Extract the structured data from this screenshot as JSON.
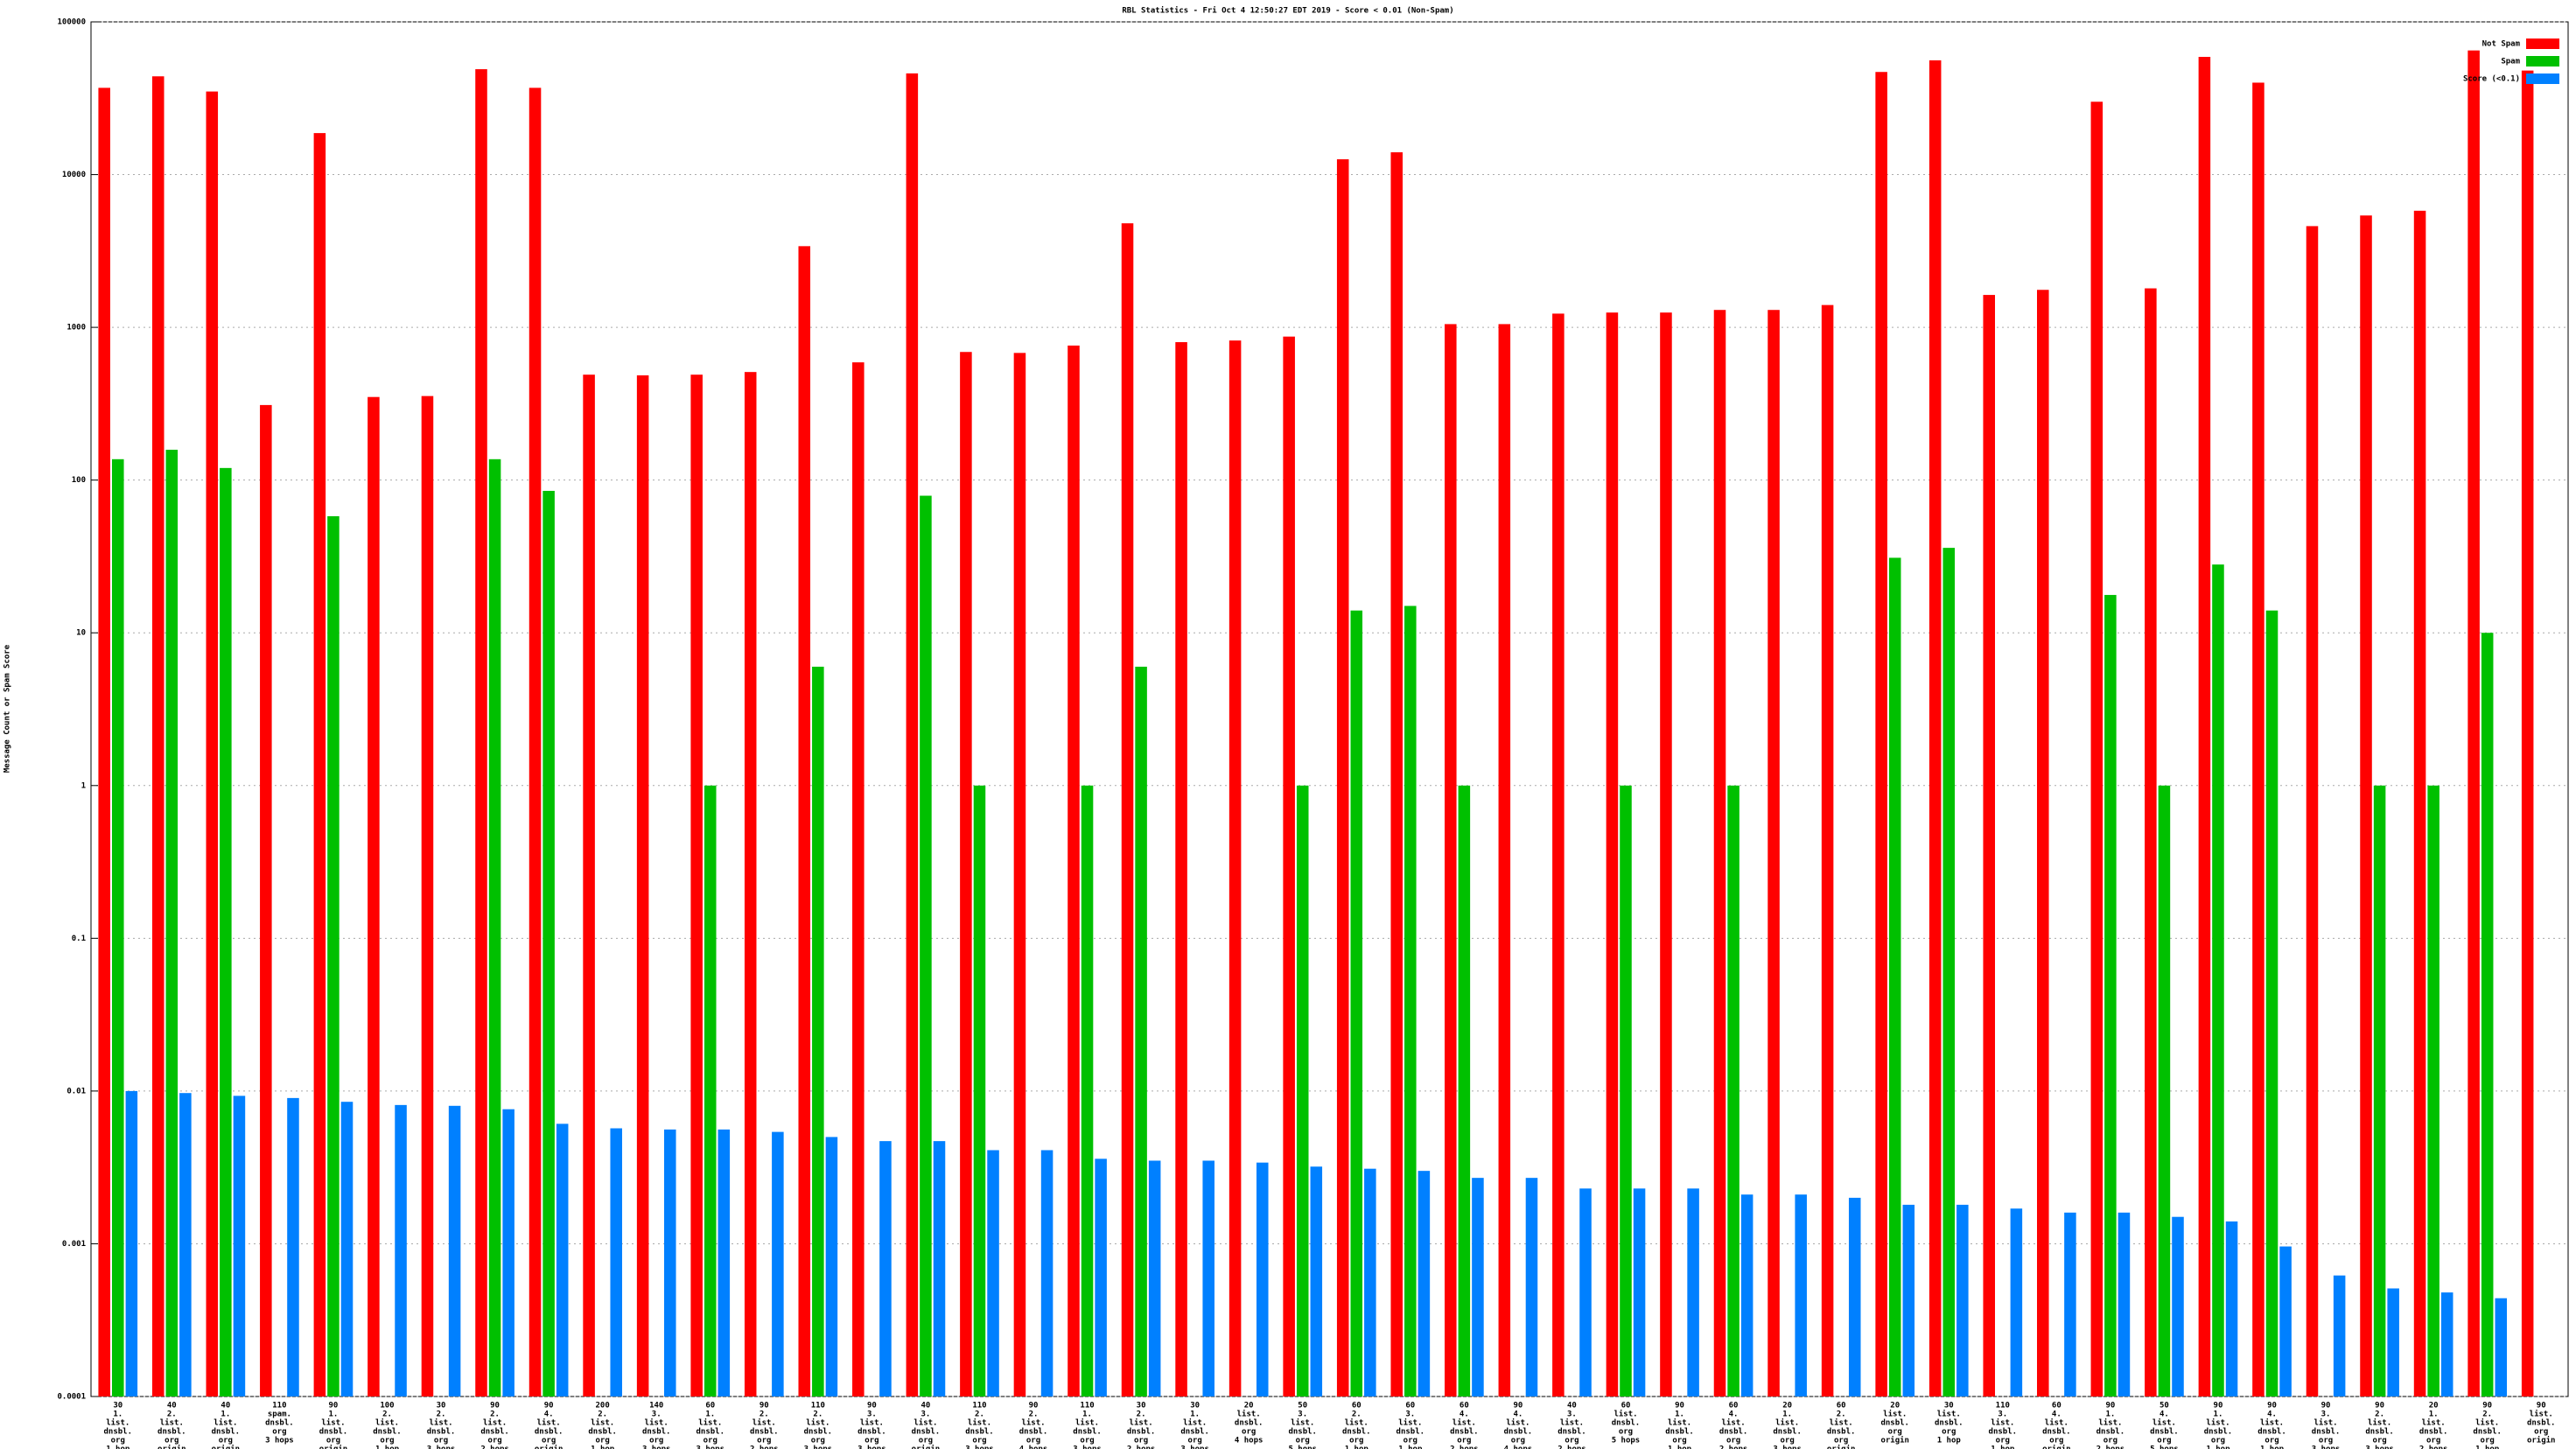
{
  "chart_data": {
    "type": "bar",
    "log_scale": true,
    "grid": true,
    "legend": "upper right",
    "title": "RBL Statistics - Fri Oct  4 12:50:27 EDT 2019 - Score < 0.01 (Non-Spam)",
    "ylabel": "Message Count or Spam Score",
    "ylim": [
      0.0001,
      100000
    ],
    "yticks": [
      0.0001,
      0.001,
      0.01,
      0.1,
      1,
      10,
      100,
      1000,
      10000,
      100000
    ],
    "categories": [
      [
        "30",
        "1.",
        "list.",
        "dnsbl.",
        "org",
        "1 hop"
      ],
      [
        "40",
        "2.",
        "list.",
        "dnsbl.",
        "org",
        "origin"
      ],
      [
        "40",
        "1.",
        "list.",
        "dnsbl.",
        "org",
        "origin"
      ],
      [
        "110",
        "spam.",
        "dnsbl.",
        "org",
        "3 hops"
      ],
      [
        "90",
        "1.",
        "list.",
        "dnsbl.",
        "org",
        "origin"
      ],
      [
        "100",
        "2.",
        "list.",
        "dnsbl.",
        "org",
        "1 hop"
      ],
      [
        "30",
        "2.",
        "list.",
        "dnsbl.",
        "org",
        "3 hops"
      ],
      [
        "90",
        "2.",
        "list.",
        "dnsbl.",
        "org",
        "2 hops"
      ],
      [
        "90",
        "4.",
        "list.",
        "dnsbl.",
        "org",
        "origin"
      ],
      [
        "200",
        "2.",
        "list.",
        "dnsbl.",
        "org",
        "1 hop"
      ],
      [
        "140",
        "3.",
        "list.",
        "dnsbl.",
        "org",
        "3 hops"
      ],
      [
        "60",
        "1.",
        "list.",
        "dnsbl.",
        "org",
        "3 hops"
      ],
      [
        "90",
        "2.",
        "list.",
        "dnsbl.",
        "org",
        "2 hops"
      ],
      [
        "110",
        "2.",
        "list.",
        "dnsbl.",
        "org",
        "3 hops"
      ],
      [
        "90",
        "3.",
        "list.",
        "dnsbl.",
        "org",
        "3 hops"
      ],
      [
        "40",
        "3.",
        "list.",
        "dnsbl.",
        "org",
        "origin"
      ],
      [
        "110",
        "2.",
        "list.",
        "dnsbl.",
        "org",
        "3 hops"
      ],
      [
        "90",
        "2.",
        "list.",
        "dnsbl.",
        "org",
        "4 hops"
      ],
      [
        "110",
        "1.",
        "list.",
        "dnsbl.",
        "org",
        "3 hops"
      ],
      [
        "30",
        "2.",
        "list.",
        "dnsbl.",
        "org",
        "2 hops"
      ],
      [
        "30",
        "1.",
        "list.",
        "dnsbl.",
        "org",
        "3 hops"
      ],
      [
        "20",
        "list.",
        "dnsbl.",
        "org",
        "4 hops"
      ],
      [
        "50",
        "3.",
        "list.",
        "dnsbl.",
        "org",
        "5 hops"
      ],
      [
        "60",
        "2.",
        "list.",
        "dnsbl.",
        "org",
        "1 hop"
      ],
      [
        "60",
        "3.",
        "list.",
        "dnsbl.",
        "org",
        "1 hop"
      ],
      [
        "60",
        "4.",
        "list.",
        "dnsbl.",
        "org",
        "2 hops"
      ],
      [
        "90",
        "4.",
        "list.",
        "dnsbl.",
        "org",
        "4 hops"
      ],
      [
        "40",
        "3.",
        "list.",
        "dnsbl.",
        "org",
        "2 hops"
      ],
      [
        "60",
        "list.",
        "dnsbl.",
        "org",
        "5 hops"
      ],
      [
        "90",
        "1.",
        "list.",
        "dnsbl.",
        "org",
        "1 hop"
      ],
      [
        "60",
        "4.",
        "list.",
        "dnsbl.",
        "org",
        "2 hops"
      ],
      [
        "20",
        "1.",
        "list.",
        "dnsbl.",
        "org",
        "3 hops"
      ],
      [
        "60",
        "2.",
        "list.",
        "dnsbl.",
        "org",
        "origin"
      ],
      [
        "20",
        "list.",
        "dnsbl.",
        "org",
        "origin"
      ],
      [
        "30",
        "list.",
        "dnsbl.",
        "org",
        "1 hop"
      ],
      [
        "110",
        "3.",
        "list.",
        "dnsbl.",
        "org",
        "1 hop"
      ],
      [
        "60",
        "4.",
        "list.",
        "dnsbl.",
        "org",
        "origin"
      ],
      [
        "90",
        "1.",
        "list.",
        "dnsbl.",
        "org",
        "2 hops"
      ],
      [
        "50",
        "4.",
        "list.",
        "dnsbl.",
        "org",
        "5 hops"
      ],
      [
        "90",
        "1.",
        "list.",
        "dnsbl.",
        "org",
        "1 hop"
      ],
      [
        "90",
        "4.",
        "list.",
        "dnsbl.",
        "org",
        "1 hop"
      ],
      [
        "90",
        "3.",
        "list.",
        "dnsbl.",
        "org",
        "3 hops"
      ],
      [
        "90",
        "2.",
        "list.",
        "dnsbl.",
        "org",
        "3 hops"
      ],
      [
        "20",
        "1.",
        "list.",
        "dnsbl.",
        "org",
        "2 hops"
      ],
      [
        "90",
        "2.",
        "list.",
        "dnsbl.",
        "org",
        "1 hop"
      ],
      [
        "90",
        "list.",
        "dnsbl.",
        "org",
        "origin"
      ]
    ],
    "series": [
      {
        "name": "Not Spam",
        "color": "#ff0000",
        "values": [
          37000,
          44000,
          35000,
          310,
          18700,
          350,
          355,
          49000,
          37000,
          490,
          485,
          490,
          510,
          3400,
          590,
          46000,
          690,
          680,
          760,
          4800,
          800,
          820,
          870,
          12600,
          14000,
          1050,
          1050,
          1230,
          1250,
          1250,
          1300,
          1300,
          1400,
          47000,
          56000,
          1630,
          1760,
          30000,
          1800,
          59000,
          40000,
          4600,
          5400,
          5800,
          65000,
          48000
        ]
      },
      {
        "name": "Spam",
        "color": "#00c000",
        "values": [
          137,
          158,
          120,
          null,
          58,
          null,
          null,
          137,
          85,
          null,
          null,
          1,
          null,
          6,
          null,
          79,
          1,
          null,
          1,
          6,
          null,
          null,
          1,
          14,
          15,
          1,
          null,
          null,
          1,
          null,
          1,
          null,
          null,
          31,
          36,
          null,
          null,
          17.7,
          1,
          28,
          14,
          null,
          1,
          1,
          10,
          null
        ]
      },
      {
        "name": "Score (<0.1)",
        "color": "#0080ff",
        "values": [
          0.01,
          0.0097,
          0.0093,
          0.009,
          0.0085,
          0.0081,
          0.008,
          0.0076,
          0.0061,
          0.0057,
          0.0056,
          0.0056,
          0.0054,
          0.005,
          0.0047,
          0.0047,
          0.0041,
          0.0041,
          0.0036,
          0.0035,
          0.0035,
          0.0034,
          0.0032,
          0.0031,
          0.003,
          0.0027,
          0.0027,
          0.0023,
          0.0023,
          0.0023,
          0.0021,
          0.0021,
          0.002,
          0.0018,
          0.0018,
          0.0017,
          0.0016,
          0.0016,
          0.0015,
          0.0014,
          0.00096,
          0.00062,
          0.00051,
          0.00048,
          0.00044,
          null
        ]
      }
    ]
  }
}
